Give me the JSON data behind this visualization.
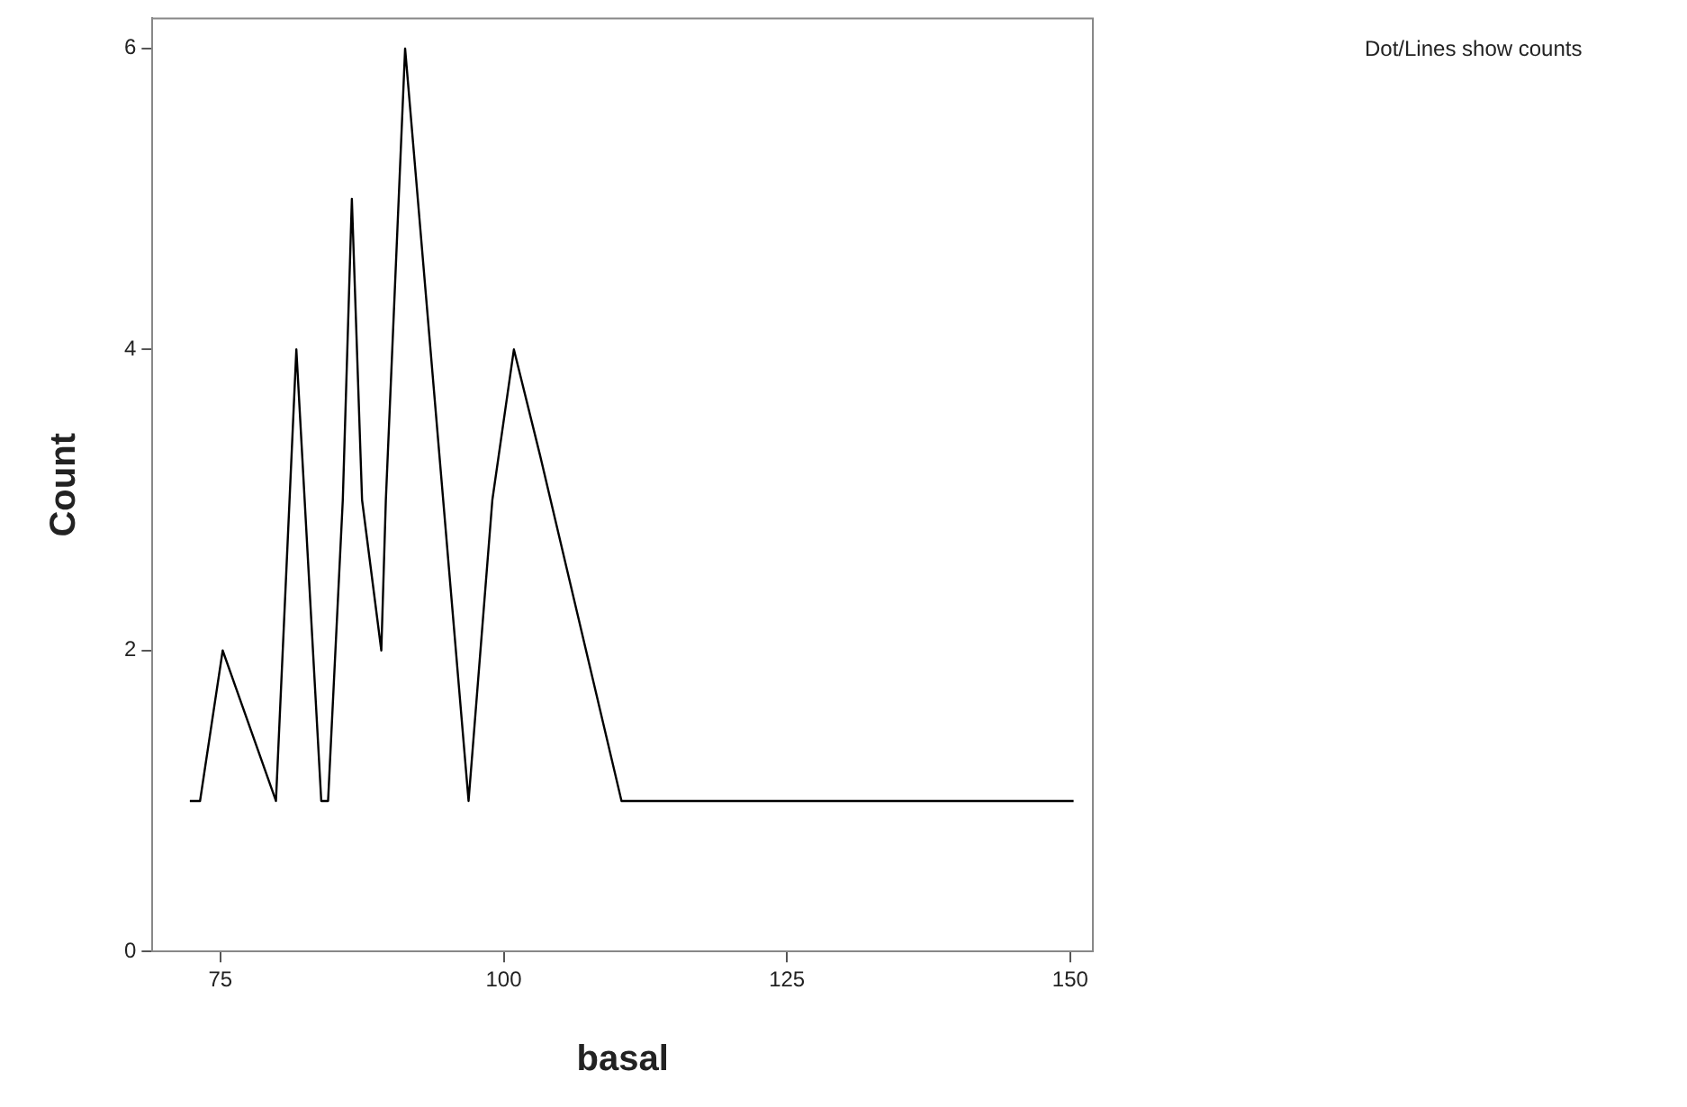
{
  "chart_data": {
    "type": "line",
    "xlabel": "basal",
    "ylabel": "Count",
    "annotations": [
      "Dot/Lines show counts"
    ],
    "series": [
      {
        "color": "#000000",
        "x": [
          72.3,
          73.2,
          75.2,
          79.9,
          81.7,
          83.9,
          84.5,
          85.8,
          86.6,
          87.5,
          89.2,
          89.6,
          91.3,
          96.9,
          99,
          100.9,
          103.2,
          110.4,
          148.4,
          150.3
        ],
        "values": [
          1,
          1,
          2,
          1,
          4,
          1,
          1,
          3,
          5,
          3,
          2,
          3,
          6,
          1,
          3,
          4,
          3.3,
          1,
          1,
          1
        ]
      }
    ],
    "xlim": [
      69,
      152
    ],
    "xticks": [
      75,
      100,
      125,
      150
    ],
    "ylim": [
      0,
      6.2
    ],
    "yticks": [
      0,
      2,
      4,
      6
    ],
    "grid": false,
    "legend": false,
    "marker": "none",
    "line_style": "solid"
  }
}
